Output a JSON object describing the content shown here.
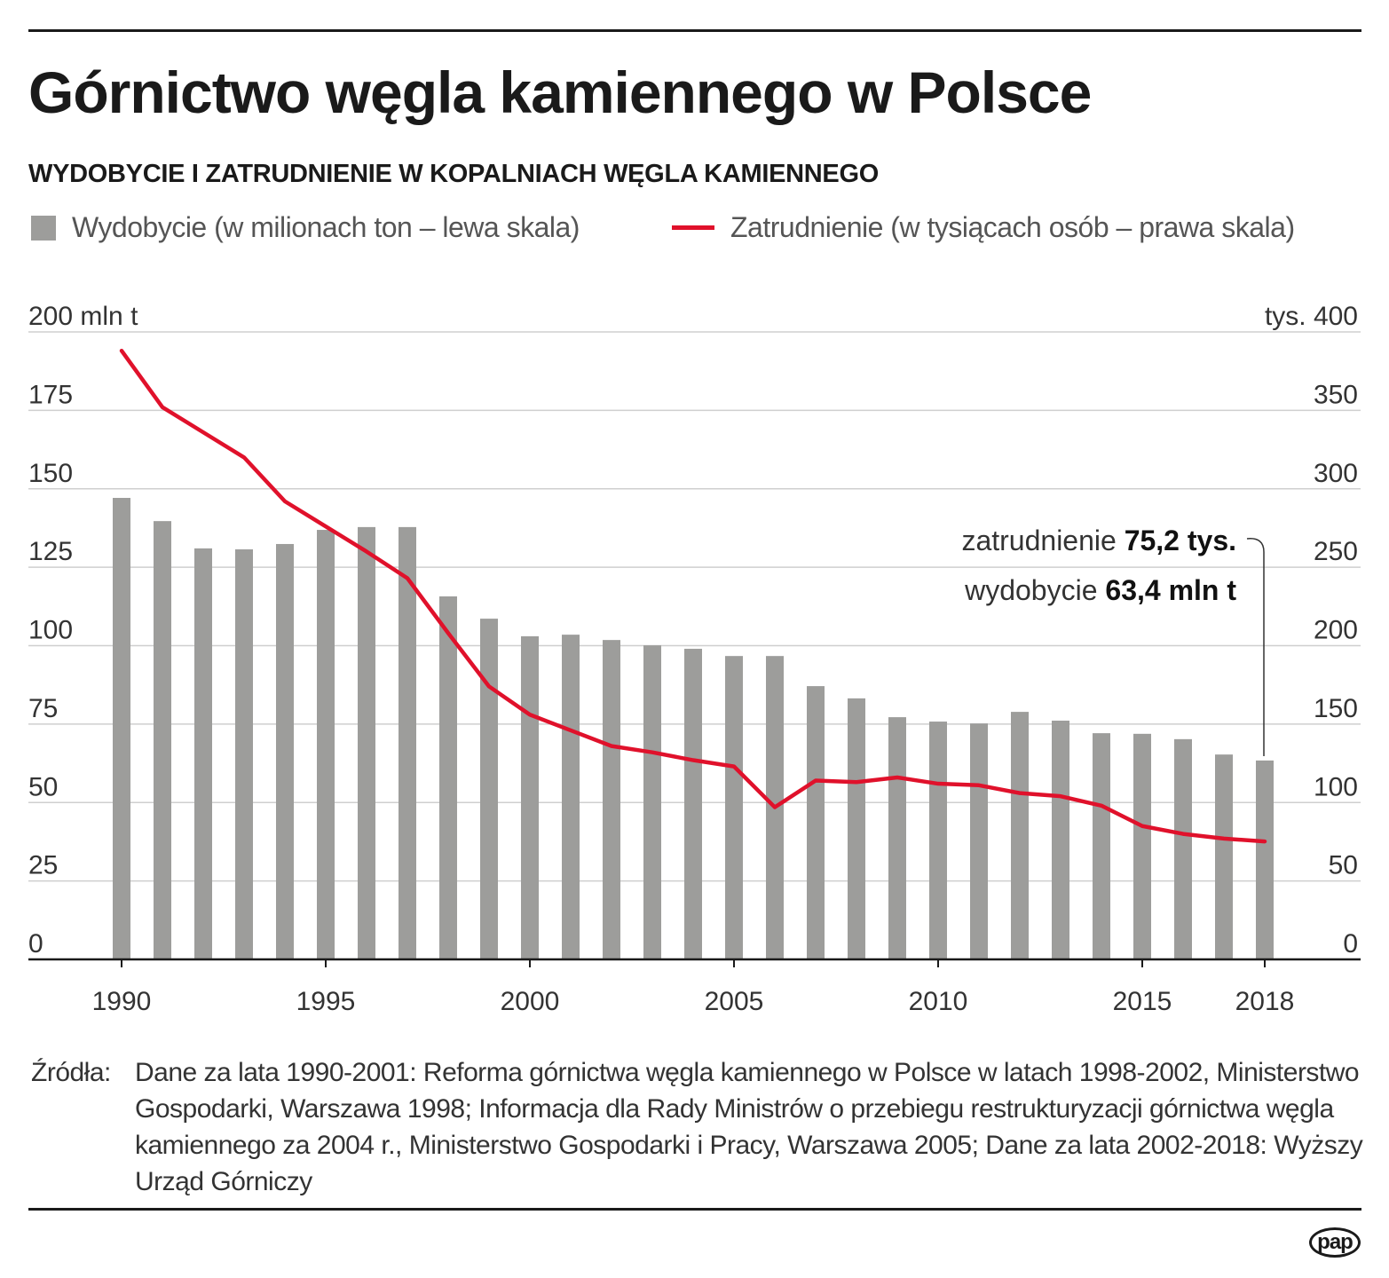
{
  "title": "Górnictwo węgla kamiennego w Polsce",
  "subtitle": "WYDOBYCIE I ZATRUDNIENIE W KOPALNIACH WĘGLA KAMIENNEGO",
  "sources_label": "Źródła:",
  "sources_text": "Dane za lata 1990-2001: Reforma górnictwa węgla kamiennego w Polsce w latach 1998-2002, Ministerstwo Gospodarki, Warszawa 1998; Informacja dla Rady Ministrów o przebiegu restrukturyzacji górnictwa węgla kamiennego za 2004 r., Ministerstwo Gospodarki i Pracy, Warszawa 2005; Dane za lata 2002-2018: Wyższy Urząd Górniczy",
  "logo": "pap",
  "colors": {
    "bar": "#9d9d9b",
    "line": "#e0112b",
    "grid": "#cfcfcf"
  },
  "chart_data": {
    "type": "bar",
    "title": "Wydobycie i zatrudnienie w kopalniach węgla kamiennego",
    "legend": [
      "Wydobycie (w milionach ton – lewa skala)",
      "Zatrudnienie (w tysiącach osób – prawa skala)"
    ],
    "x": [
      1990,
      1991,
      1992,
      1993,
      1994,
      1995,
      1996,
      1997,
      1998,
      1999,
      2000,
      2001,
      2002,
      2003,
      2004,
      2005,
      2006,
      2007,
      2008,
      2009,
      2010,
      2011,
      2012,
      2013,
      2014,
      2015,
      2016,
      2017,
      2018
    ],
    "x_tick_labels": [
      "1990",
      "1995",
      "2000",
      "2005",
      "2010",
      "2015",
      "2018"
    ],
    "x_tick_values": [
      1990,
      1995,
      2000,
      2005,
      2010,
      2015,
      2018
    ],
    "left_axis": {
      "label": "200 mln t",
      "ylim": [
        0,
        200
      ],
      "ticks": [
        "0",
        "25",
        "50",
        "75",
        "100",
        "125",
        "150",
        "175"
      ]
    },
    "right_axis": {
      "label": "tys. 400",
      "ylim": [
        0,
        400
      ],
      "ticks": [
        "0",
        "50",
        "100",
        "150",
        "200",
        "250",
        "300",
        "350"
      ]
    },
    "series": [
      {
        "name": "Wydobycie",
        "type": "bar",
        "axis": "left",
        "values": [
          147.1,
          139.7,
          131.0,
          130.7,
          132.4,
          136.9,
          137.8,
          137.8,
          115.7,
          108.6,
          103.0,
          103.5,
          101.8,
          100.1,
          99.0,
          96.7,
          96.7,
          87.1,
          83.2,
          77.2,
          75.8,
          75.2,
          78.9,
          76.1,
          72.1,
          71.9,
          70.2,
          65.3,
          63.4
        ]
      },
      {
        "name": "Zatrudnienie",
        "type": "line",
        "axis": "right",
        "values": [
          388,
          352,
          336,
          320,
          292,
          276,
          260,
          243,
          208,
          174,
          156,
          146,
          136,
          132,
          127,
          123,
          97,
          114,
          113,
          116,
          112,
          111,
          106,
          104,
          98,
          85,
          80,
          77,
          75.2
        ]
      }
    ],
    "annotation": {
      "line1_prefix": "zatrudnienie ",
      "line1_value": "75,2 tys.",
      "line2_prefix": "wydobycie ",
      "line2_value": "63,4 mln t"
    },
    "grid": true
  }
}
